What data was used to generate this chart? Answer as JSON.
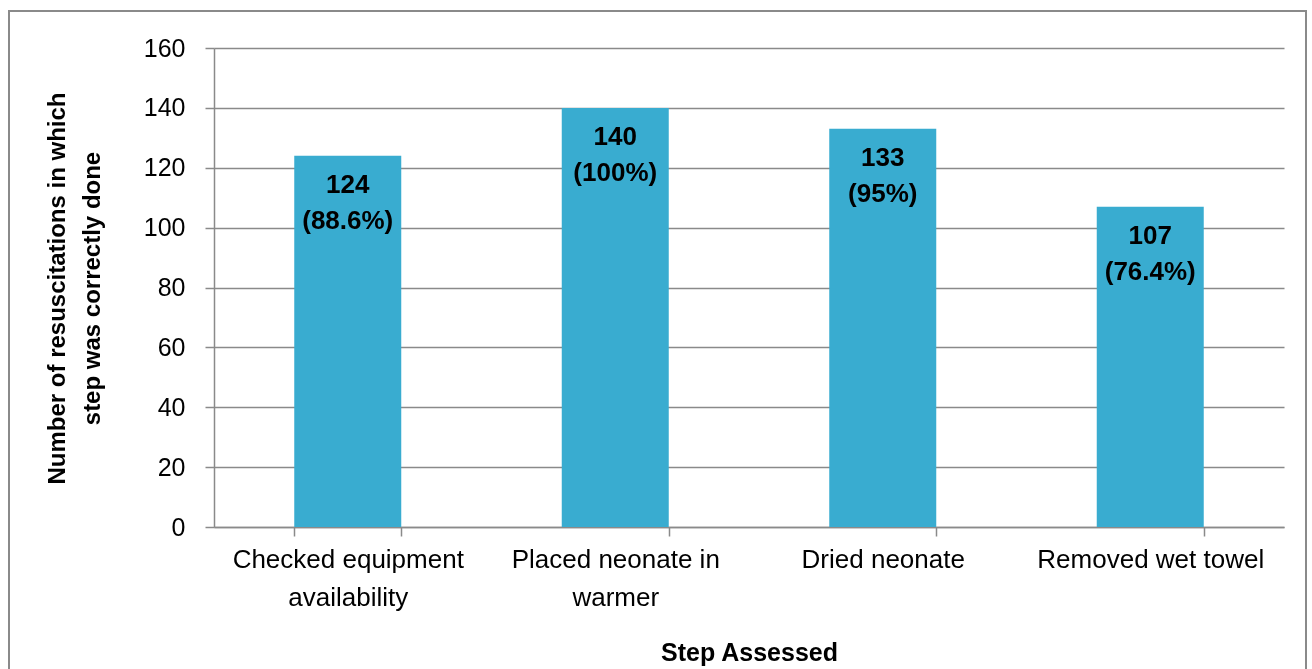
{
  "chart_data": {
    "type": "bar",
    "xlabel": "Step Assessed",
    "ylabel": "Number of resuscitations in which step was correctly done",
    "categories": [
      "Checked equipment availability",
      "Placed neonate in warmer",
      "Dried neonate",
      "Removed wet towel"
    ],
    "values": [
      124,
      140,
      133,
      107
    ],
    "color": "#39acd0",
    "value_labels": [
      "124 (88.6%)",
      "140 (100%)",
      "133 (95%)",
      "107 (76.4%)"
    ],
    "ylim": [
      0,
      160
    ],
    "yticks": [
      0,
      20,
      40,
      60,
      80,
      100,
      120,
      140,
      160
    ],
    "grid": "y"
  }
}
